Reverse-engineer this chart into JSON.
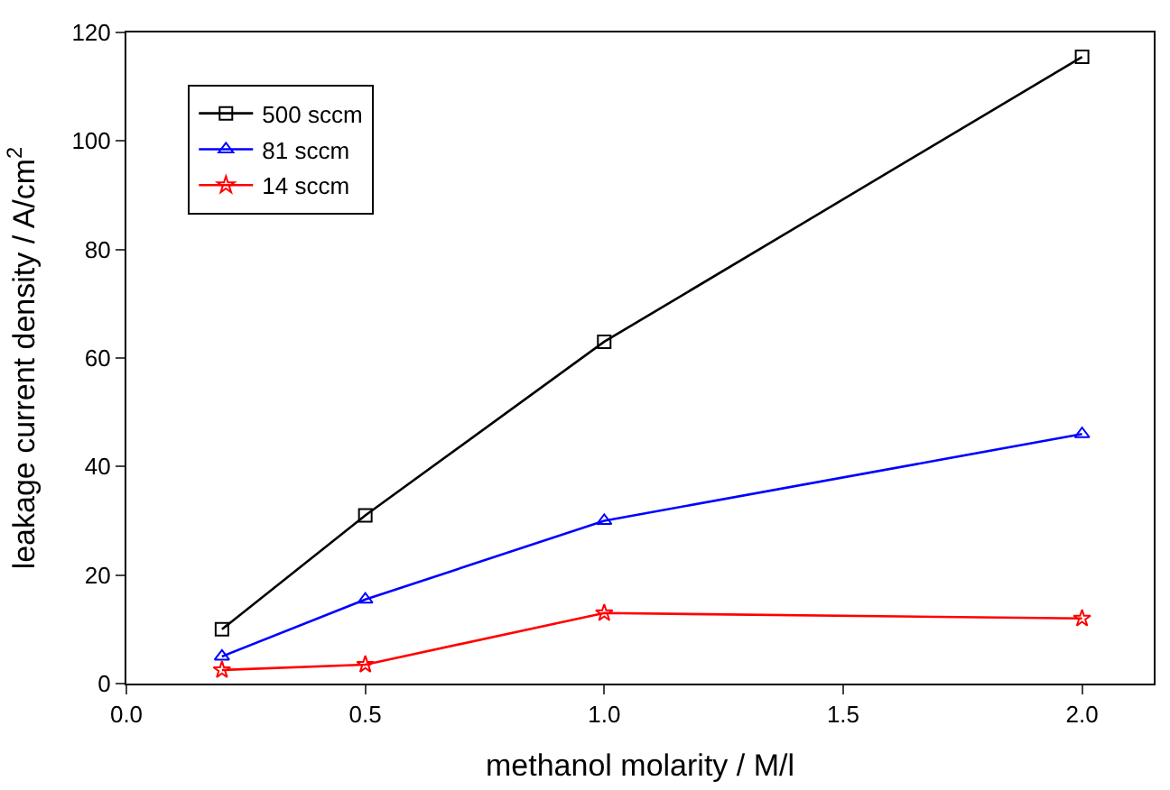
{
  "chart_data": {
    "type": "line",
    "xlabel": "methanol molarity / M/l",
    "ylabel": "leakage current density / A/cm$^{2}$",
    "x": [
      0.2,
      0.5,
      1.0,
      2.0
    ],
    "series": [
      {
        "name": "500 sccm",
        "color": "#000000",
        "marker": "square",
        "values": [
          10,
          31,
          63,
          115.5
        ]
      },
      {
        "name": "81 sccm",
        "color": "#0000ff",
        "marker": "triangle",
        "values": [
          5,
          15.5,
          30,
          46
        ]
      },
      {
        "name": "14 sccm",
        "color": "#ff0000",
        "marker": "star",
        "values": [
          2.5,
          3.5,
          13,
          12
        ]
      }
    ],
    "xlim": [
      0,
      2.15
    ],
    "xticks": [
      {
        "value": 0,
        "label": "0.0"
      },
      {
        "value": 0.5,
        "label": "0.5"
      },
      {
        "value": 1,
        "label": "1.0"
      },
      {
        "value": 1.5,
        "label": "1.5"
      },
      {
        "value": 2,
        "label": "2.0"
      }
    ],
    "ylim": [
      0,
      120
    ],
    "yticks": [
      0,
      20,
      40,
      60,
      80,
      100,
      120
    ],
    "legend": "top left",
    "line_style": "solid"
  }
}
